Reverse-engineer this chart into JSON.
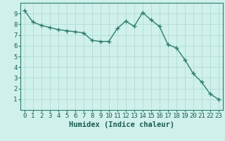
{
  "title": "",
  "xlabel": "Humidex (Indice chaleur)",
  "ylabel": "",
  "x_values": [
    0,
    1,
    2,
    3,
    4,
    5,
    6,
    7,
    8,
    9,
    10,
    11,
    12,
    13,
    14,
    15,
    16,
    17,
    18,
    19,
    20,
    21,
    22,
    23
  ],
  "y_values": [
    9.3,
    8.2,
    7.9,
    7.7,
    7.5,
    7.4,
    7.3,
    7.2,
    6.5,
    6.4,
    6.4,
    7.6,
    8.3,
    7.8,
    9.1,
    8.4,
    7.8,
    6.1,
    5.8,
    4.7,
    3.4,
    2.6,
    1.5,
    1.0
  ],
  "line_color": "#2e7d6e",
  "marker_color": "#2e7d6e",
  "bg_color": "#cff0eb",
  "grid_color": "#aad8d0",
  "axis_label_color": "#1a5c52",
  "ylim": [
    0,
    10
  ],
  "xlim": [
    -0.5,
    23.5
  ],
  "yticks": [
    1,
    2,
    3,
    4,
    5,
    6,
    7,
    8,
    9
  ],
  "xticks": [
    0,
    1,
    2,
    3,
    4,
    5,
    6,
    7,
    8,
    9,
    10,
    11,
    12,
    13,
    14,
    15,
    16,
    17,
    18,
    19,
    20,
    21,
    22,
    23
  ],
  "tick_labelsize": 6.5,
  "xlabel_fontsize": 7.5,
  "linewidth": 1.0,
  "markersize": 4,
  "marker": "+"
}
